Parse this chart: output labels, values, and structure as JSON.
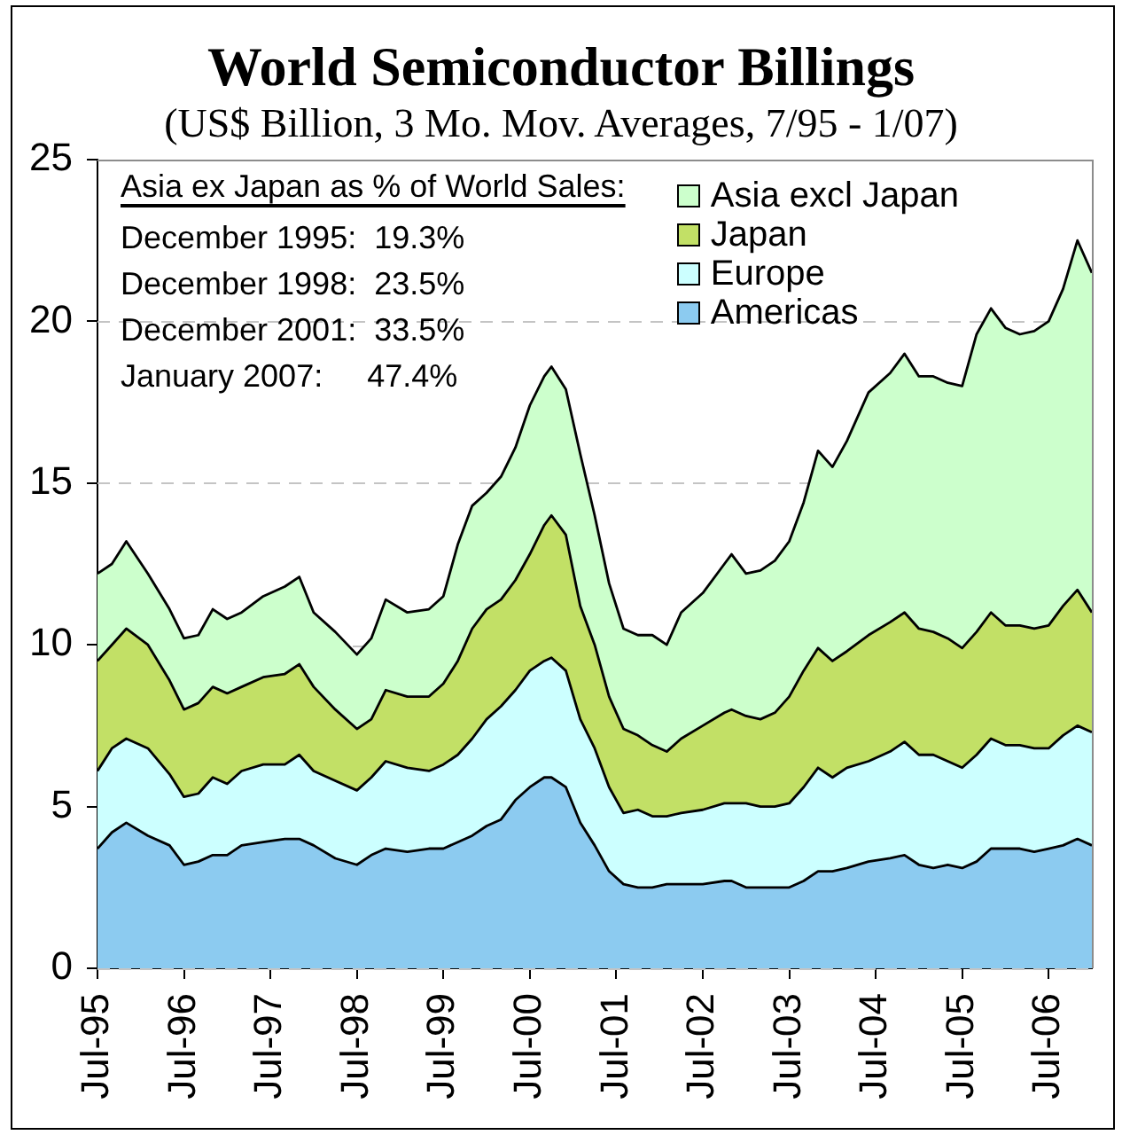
{
  "chart_data": {
    "type": "area",
    "title": "World Semiconductor Billings",
    "subtitle": "(US$ Billion, 3 Mo. Mov. Averages, 7/95 - 1/07)",
    "annotations": [
      "Asia ex Japan as % of World Sales:",
      "December 1995:  19.3%",
      "December 1998:  23.5%",
      "December 2001:  33.5%",
      "January 2007:     47.4%"
    ],
    "x": [
      "1995-07",
      "1995-09",
      "1995-11",
      "1996-02",
      "1996-05",
      "1996-07",
      "1996-09",
      "1996-11",
      "1997-01",
      "1997-03",
      "1997-06",
      "1997-09",
      "1997-11",
      "1998-01",
      "1998-04",
      "1998-07",
      "1998-09",
      "1998-11",
      "1999-02",
      "1999-05",
      "1999-07",
      "1999-09",
      "1999-11",
      "2000-01",
      "2000-03",
      "2000-05",
      "2000-07",
      "2000-09",
      "2000-10",
      "2000-12",
      "2001-02",
      "2001-04",
      "2001-06",
      "2001-08",
      "2001-10",
      "2001-12",
      "2002-02",
      "2002-04",
      "2002-07",
      "2002-10",
      "2002-11",
      "2003-01",
      "2003-03",
      "2003-05",
      "2003-07",
      "2003-09",
      "2003-11",
      "2004-01",
      "2004-03",
      "2004-06",
      "2004-09",
      "2004-11",
      "2005-01",
      "2005-03",
      "2005-05",
      "2005-07",
      "2005-09",
      "2005-11",
      "2006-01",
      "2006-03",
      "2006-05",
      "2006-07",
      "2006-09",
      "2006-11",
      "2007-01"
    ],
    "series": [
      {
        "name": "Americas",
        "color": "#8ccbf0",
        "values": [
          3.7,
          4.2,
          4.5,
          4.1,
          3.8,
          3.2,
          3.3,
          3.5,
          3.5,
          3.8,
          3.9,
          4.0,
          4.0,
          3.8,
          3.4,
          3.2,
          3.5,
          3.7,
          3.6,
          3.7,
          3.7,
          3.9,
          4.1,
          4.4,
          4.6,
          5.2,
          5.6,
          5.9,
          5.9,
          5.6,
          4.5,
          3.8,
          3.0,
          2.6,
          2.5,
          2.5,
          2.6,
          2.6,
          2.6,
          2.7,
          2.7,
          2.5,
          2.5,
          2.5,
          2.5,
          2.7,
          3.0,
          3.0,
          3.1,
          3.3,
          3.4,
          3.5,
          3.2,
          3.1,
          3.2,
          3.1,
          3.3,
          3.7,
          3.7,
          3.7,
          3.6,
          3.7,
          3.8,
          4.0,
          3.8
        ]
      },
      {
        "name": "Europe",
        "color": "#ccffff",
        "values": [
          2.4,
          2.6,
          2.6,
          2.7,
          2.2,
          2.1,
          2.1,
          2.4,
          2.2,
          2.3,
          2.4,
          2.3,
          2.6,
          2.3,
          2.4,
          2.3,
          2.4,
          2.7,
          2.6,
          2.4,
          2.6,
          2.7,
          3.0,
          3.3,
          3.5,
          3.4,
          3.6,
          3.6,
          3.7,
          3.6,
          3.2,
          3.0,
          2.6,
          2.2,
          2.4,
          2.2,
          2.1,
          2.2,
          2.3,
          2.4,
          2.4,
          2.6,
          2.5,
          2.5,
          2.6,
          2.9,
          3.2,
          2.9,
          3.1,
          3.1,
          3.3,
          3.5,
          3.4,
          3.5,
          3.2,
          3.1,
          3.3,
          3.4,
          3.2,
          3.2,
          3.2,
          3.1,
          3.4,
          3.5,
          3.5
        ]
      },
      {
        "name": "Japan",
        "color": "#c2e066",
        "values": [
          3.4,
          3.2,
          3.4,
          3.2,
          2.9,
          2.7,
          2.8,
          2.8,
          2.8,
          2.6,
          2.7,
          2.8,
          2.8,
          2.6,
          2.2,
          1.9,
          1.8,
          2.2,
          2.2,
          2.3,
          2.5,
          2.9,
          3.4,
          3.4,
          3.3,
          3.4,
          3.6,
          4.2,
          4.4,
          4.2,
          3.5,
          3.2,
          2.8,
          2.6,
          2.3,
          2.2,
          2.0,
          2.3,
          2.6,
          2.8,
          2.9,
          2.7,
          2.7,
          2.9,
          3.3,
          3.6,
          3.7,
          3.6,
          3.6,
          3.9,
          4.0,
          4.0,
          3.9,
          3.8,
          3.8,
          3.7,
          3.8,
          3.9,
          3.7,
          3.7,
          3.7,
          3.8,
          4.0,
          4.2,
          3.7
        ]
      },
      {
        "name": "Asia excl Japan",
        "color": "#ccffcc",
        "values": [
          2.7,
          2.5,
          2.7,
          2.2,
          2.2,
          2.2,
          2.1,
          2.4,
          2.3,
          2.3,
          2.5,
          2.7,
          2.7,
          2.3,
          2.4,
          2.3,
          2.5,
          2.8,
          2.6,
          2.7,
          2.7,
          3.6,
          3.8,
          3.6,
          3.8,
          4.1,
          4.6,
          4.6,
          4.6,
          4.5,
          4.7,
          4.0,
          3.5,
          3.1,
          3.1,
          3.4,
          3.3,
          3.9,
          4.1,
          4.6,
          4.8,
          4.4,
          4.6,
          4.7,
          4.8,
          5.2,
          6.1,
          6.0,
          6.5,
          7.5,
          7.7,
          8.0,
          7.8,
          7.9,
          7.9,
          8.1,
          9.2,
          9.4,
          9.2,
          9.0,
          9.2,
          9.4,
          9.8,
          10.8,
          10.5
        ]
      }
    ],
    "stacked": true,
    "xlim": [
      "1995-07",
      "2007-01"
    ],
    "xticks": [
      {
        "value": "1995-07",
        "label": "Jul-95"
      },
      {
        "value": "1996-07",
        "label": "Jul-96"
      },
      {
        "value": "1997-07",
        "label": "Jul-97"
      },
      {
        "value": "1998-07",
        "label": "Jul-98"
      },
      {
        "value": "1999-07",
        "label": "Jul-99"
      },
      {
        "value": "2000-07",
        "label": "Jul-00"
      },
      {
        "value": "2001-07",
        "label": "Jul-01"
      },
      {
        "value": "2002-07",
        "label": "Jul-02"
      },
      {
        "value": "2003-07",
        "label": "Jul-03"
      },
      {
        "value": "2004-07",
        "label": "Jul-04"
      },
      {
        "value": "2005-07",
        "label": "Jul-05"
      },
      {
        "value": "2006-07",
        "label": "Jul-06"
      }
    ],
    "ylim": [
      0,
      25
    ],
    "yticks": [
      0,
      5,
      10,
      15,
      20,
      25
    ],
    "grid": "y",
    "legend": "top right"
  }
}
